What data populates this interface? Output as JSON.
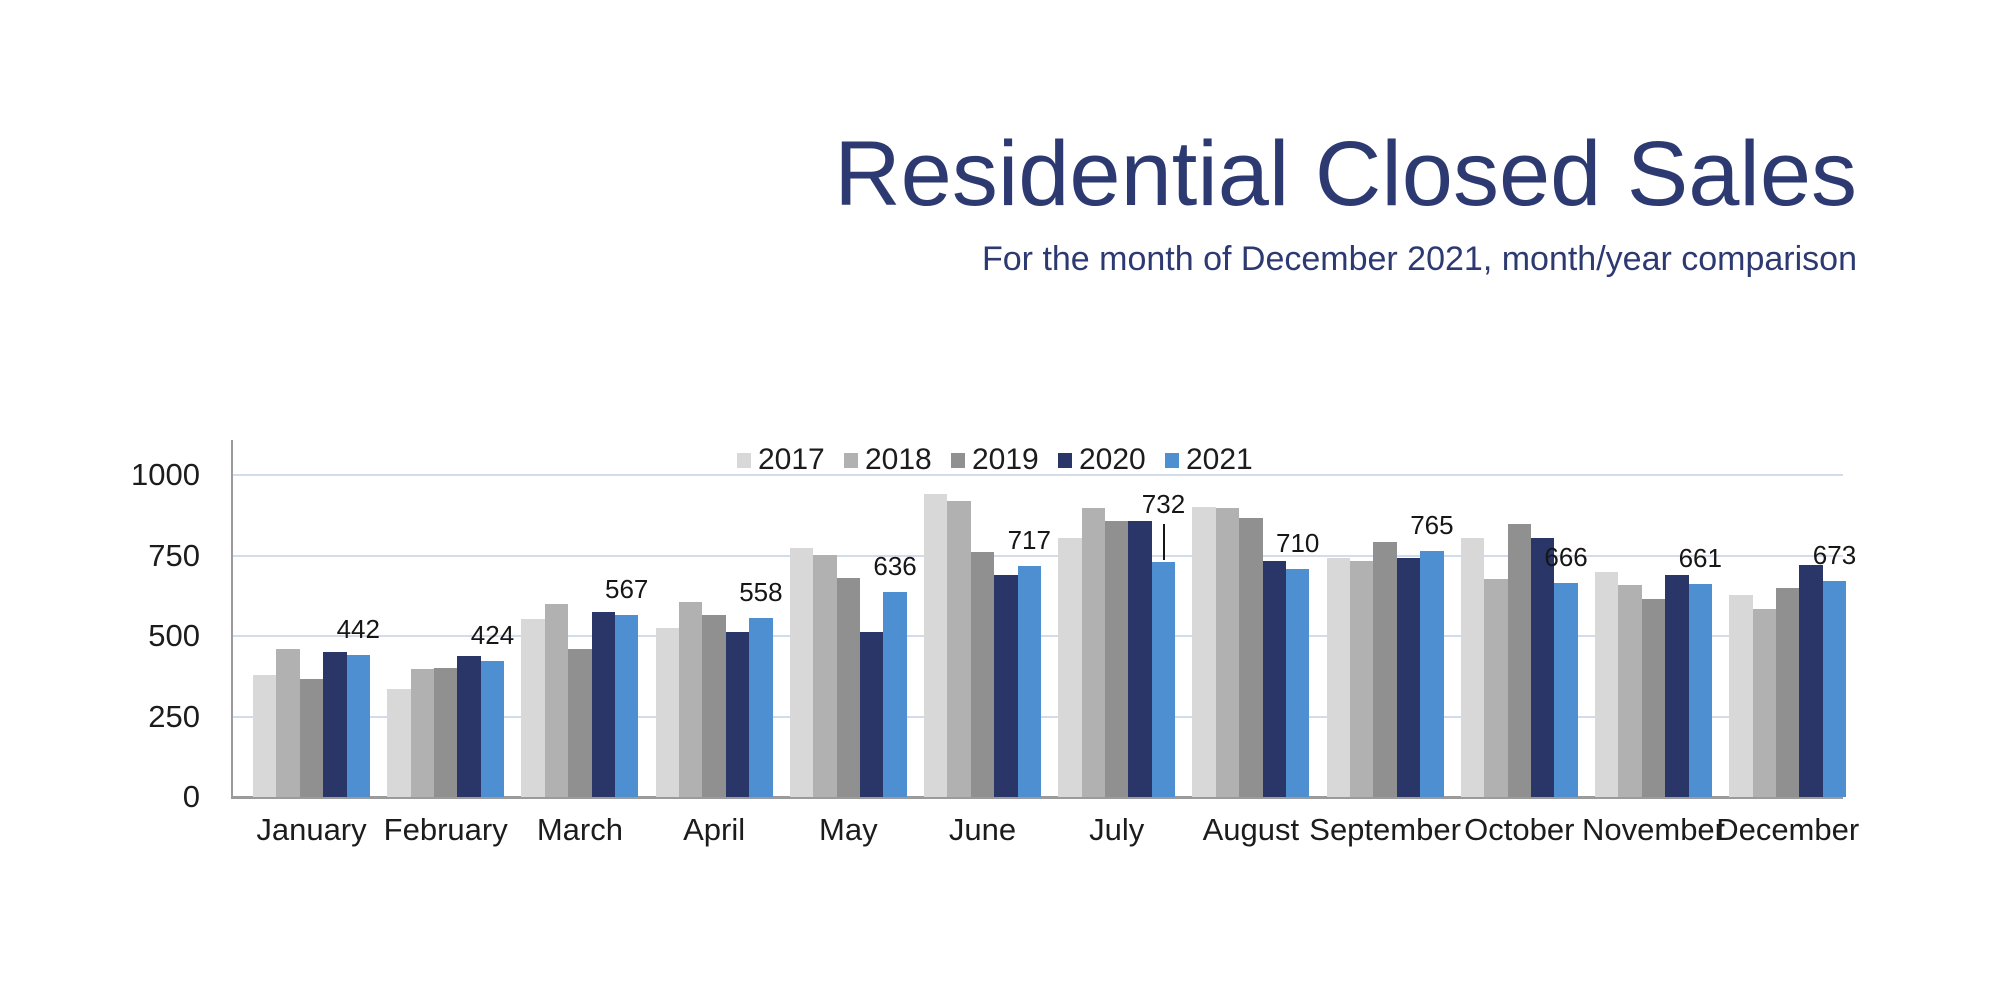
{
  "header": {
    "title": "Residential Closed Sales",
    "subtitle": "For the month of December 2021, month/year comparison"
  },
  "colors": {
    "title_text": "#2d3a72",
    "subtitle_text": "#2d3a72",
    "axis_line": "#9b9b9b",
    "gridline": "#d3dcea",
    "tick_text": "#1c1c1c",
    "data_label_text": "#161616"
  },
  "chart_data": {
    "type": "bar",
    "title": "Residential Closed Sales",
    "subtitle": "For the month of December 2021, month/year comparison",
    "categories": [
      "January",
      "February",
      "March",
      "April",
      "May",
      "June",
      "July",
      "August",
      "September",
      "October",
      "November",
      "December"
    ],
    "series": [
      {
        "name": "2017",
        "color": "#d8d8d8",
        "values": [
          378,
          336,
          553,
          524,
          774,
          943,
          805,
          900,
          742,
          806,
          700,
          628
        ]
      },
      {
        "name": "2018",
        "color": "#b1b1b1",
        "values": [
          460,
          398,
          599,
          607,
          753,
          919,
          899,
          898,
          733,
          679,
          660,
          585
        ]
      },
      {
        "name": "2019",
        "color": "#909090",
        "values": [
          368,
          400,
          461,
          566,
          680,
          763,
          858,
          867,
          794,
          848,
          616,
          650
        ]
      },
      {
        "name": "2020",
        "color": "#2a3568",
        "values": [
          452,
          439,
          576,
          512,
          512,
          691,
          857,
          733,
          742,
          805,
          690,
          722
        ]
      },
      {
        "name": "2021",
        "color": "#4e8fd2",
        "values": [
          442,
          424,
          567,
          558,
          636,
          717,
          732,
          710,
          765,
          666,
          661,
          673
        ]
      }
    ],
    "data_labels": {
      "series": "2021",
      "values": [
        442,
        424,
        567,
        558,
        636,
        717,
        732,
        710,
        765,
        666,
        661,
        673
      ],
      "callout_index": 6
    },
    "y_axis": {
      "min": 0,
      "max": 1000,
      "ticks": [
        0,
        250,
        500,
        750,
        1000
      ]
    },
    "x_axis_label": "",
    "y_axis_label": "",
    "legend_position": "top",
    "grid": true
  }
}
